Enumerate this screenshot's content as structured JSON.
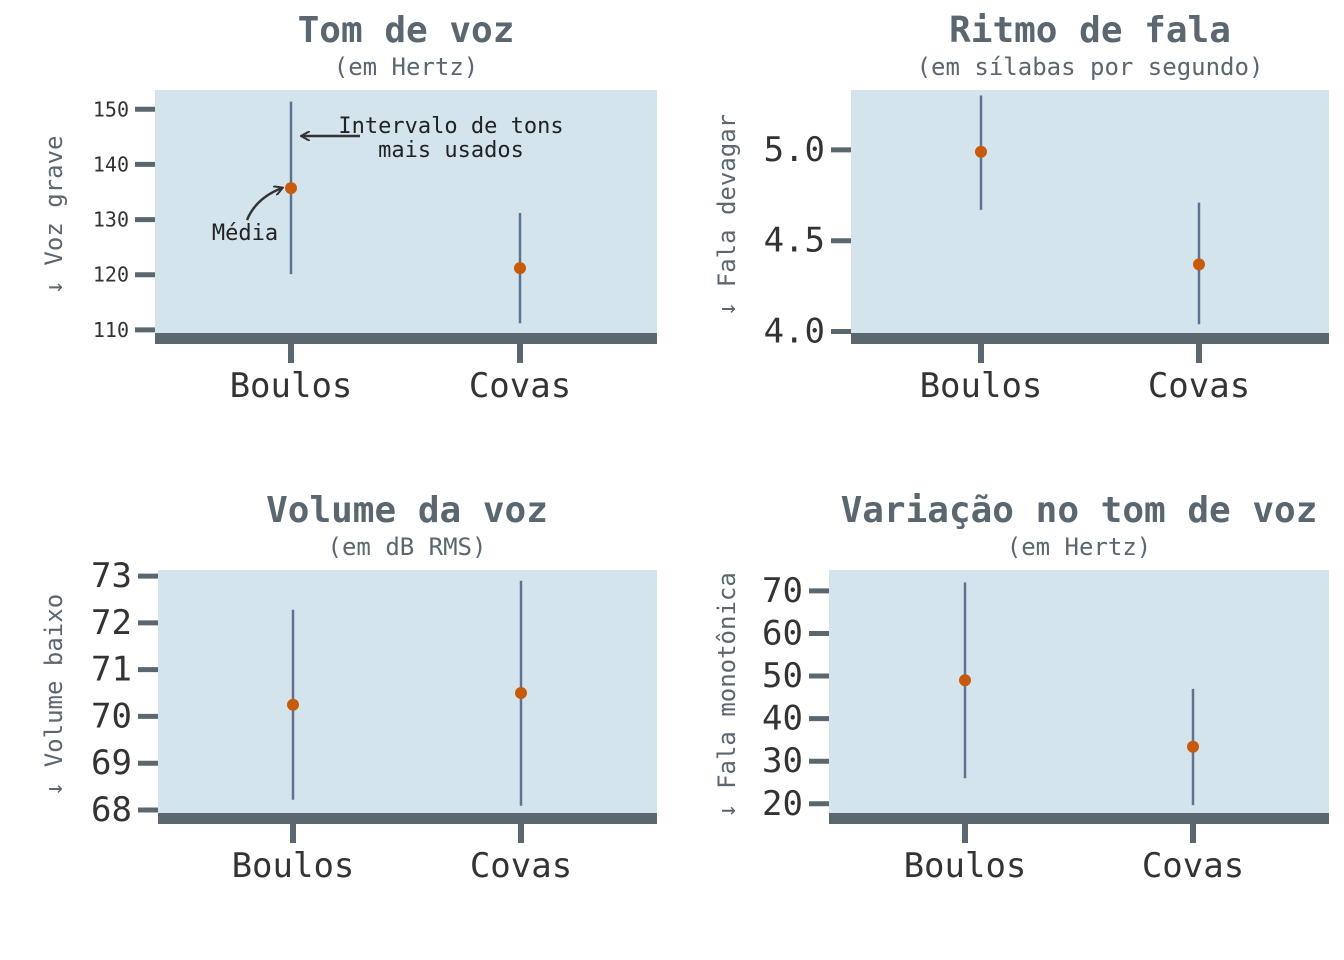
{
  "colors": {
    "panel_bg": "#d4e4ec",
    "axis": "#5b676f",
    "range_line": "#5e7390",
    "mean_point": "#c85a0b",
    "text_dark": "#333333",
    "text_muted": "#5a6770"
  },
  "chart_data": [
    {
      "type": "scatter",
      "title": "Tom de voz",
      "subtitle": "(em Hertz)",
      "ylabel": "↓ Voz grave",
      "categories": [
        "Boulos",
        "Covas"
      ],
      "series": [
        {
          "mean": 135.7,
          "low": 120.1,
          "high": 151.4
        },
        {
          "mean": 121.2,
          "low": 111.2,
          "high": 131.2
        }
      ],
      "ylim": [
        108.7,
        153.5
      ],
      "yticks": [
        110,
        120,
        130,
        140,
        150
      ],
      "annotations": [
        {
          "text": "Média"
        },
        {
          "text": "Intervalo de tons",
          "text2": "mais usados"
        }
      ]
    },
    {
      "type": "scatter",
      "title": "Ritmo de fala",
      "subtitle": "(em sílabas por segundo)",
      "ylabel": "↓ Fala devagar",
      "categories": [
        "Boulos",
        "Covas"
      ],
      "series": [
        {
          "mean": 4.99,
          "low": 4.67,
          "high": 5.3
        },
        {
          "mean": 4.37,
          "low": 4.04,
          "high": 4.71
        }
      ],
      "ylim": [
        3.97,
        5.33
      ],
      "yticks": [
        "4.0",
        "4.5",
        "5.0"
      ],
      "annotations": []
    },
    {
      "type": "scatter",
      "title": "Volume da voz",
      "subtitle": "(em dB RMS)",
      "ylabel": "↓ Volume baixo",
      "categories": [
        "Boulos",
        "Covas"
      ],
      "series": [
        {
          "mean": 70.25,
          "low": 68.22,
          "high": 72.28
        },
        {
          "mean": 70.5,
          "low": 68.09,
          "high": 72.9
        }
      ],
      "ylim": [
        67.85,
        73.13
      ],
      "yticks": [
        68,
        69,
        70,
        71,
        72,
        73
      ],
      "annotations": []
    },
    {
      "type": "scatter",
      "title": "Variação no tom de voz",
      "subtitle": "(em Hertz)",
      "ylabel": "↓ Fala monotônica",
      "categories": [
        "Boulos",
        "Covas"
      ],
      "series": [
        {
          "mean": 49.0,
          "low": 26.0,
          "high": 72.0
        },
        {
          "mean": 33.4,
          "low": 19.7,
          "high": 47.0
        }
      ],
      "ylim": [
        16.9,
        74.9
      ],
      "yticks": [
        20,
        30,
        40,
        50,
        60,
        70
      ],
      "annotations": []
    }
  ]
}
